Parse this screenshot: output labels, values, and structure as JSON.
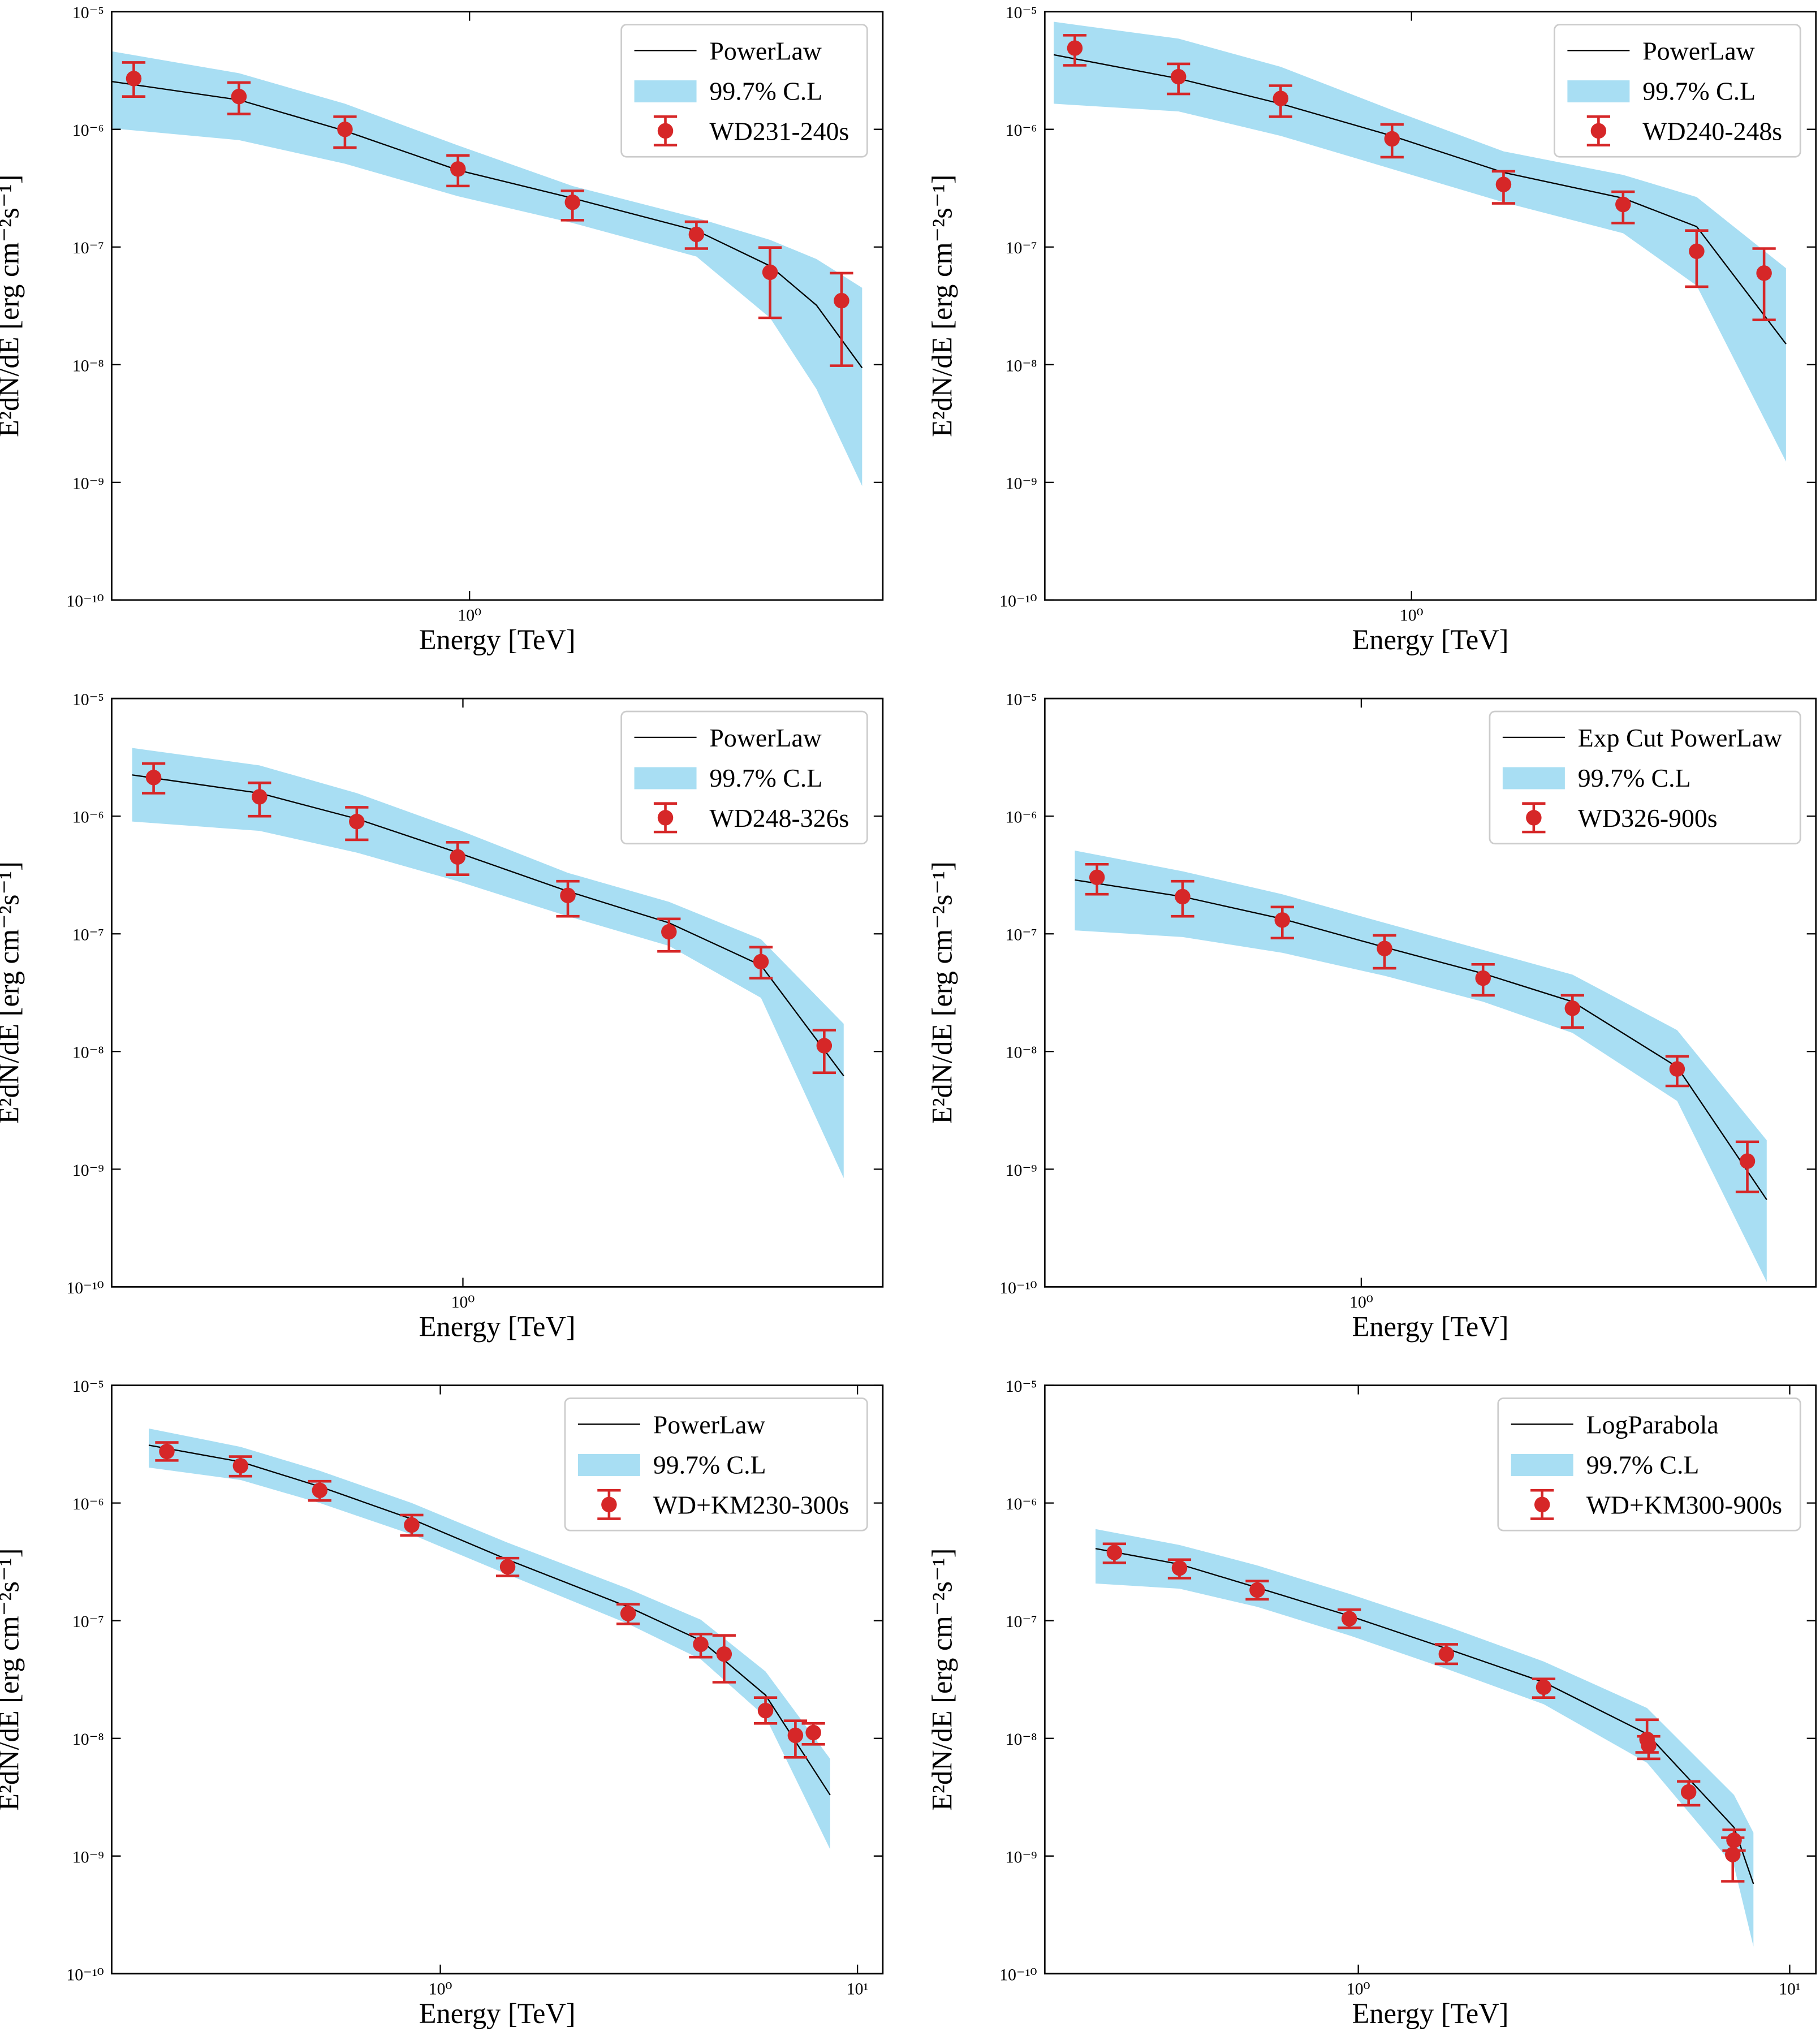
{
  "chart_data": [
    {
      "type": "spectrum",
      "xlabel": "Energy [TeV]",
      "ylabel": "E²dN/dE [erg cm⁻²s⁻¹]",
      "xscale": "log",
      "yscale": "log",
      "legend": "upper right",
      "xlim": [
        0.204,
        6.27
      ],
      "ylim": [
        1e-10,
        1e-05
      ],
      "xticks": [
        {
          "value": 1,
          "label": "10⁰"
        }
      ],
      "yticks": [
        {
          "value": 1e-10,
          "label": "10⁻¹⁰"
        },
        {
          "value": 1e-09,
          "label": "10⁻⁹"
        },
        {
          "value": 1e-08,
          "label": "10⁻⁸"
        },
        {
          "value": 1e-07,
          "label": "10⁻⁷"
        },
        {
          "value": 1e-06,
          "label": "10⁻⁶"
        },
        {
          "value": 1e-05,
          "label": "10⁻⁵"
        }
      ],
      "model": {
        "name": "PowerLaw",
        "color": "#000000",
        "x": [
          0.204,
          0.359,
          0.575,
          0.95,
          1.58,
          2.74,
          3.8,
          4.67,
          5.72
        ],
        "values": [
          2.55e-06,
          1.78e-06,
          9.7e-07,
          4.5e-07,
          2.6e-07,
          1.38e-07,
          6.9e-08,
          3.2e-08,
          9.4e-09
        ]
      },
      "band": {
        "name": "99.7% C.L",
        "color": "#a8def3",
        "x": [
          0.204,
          0.359,
          0.575,
          0.95,
          1.58,
          2.74,
          3.8,
          4.67,
          5.72
        ],
        "lower": [
          1.02e-06,
          8.1e-07,
          5.1e-07,
          2.7e-07,
          1.6e-07,
          8.3e-08,
          2.5e-08,
          6.2e-09,
          9.3e-10
        ],
        "upper": [
          4.6e-06,
          3e-06,
          1.65e-06,
          7.3e-07,
          3.3e-07,
          1.77e-07,
          1.15e-07,
          7.9e-08,
          4.5e-08
        ]
      },
      "points": {
        "name": "WD231-240s",
        "color": "#d62728",
        "x": [
          0.225,
          0.359,
          0.575,
          0.95,
          1.58,
          2.74,
          3.8,
          5.22
        ],
        "values": [
          2.7e-06,
          1.9e-06,
          1e-06,
          4.6e-07,
          2.4e-07,
          1.28e-07,
          6.1e-08,
          3.5e-08
        ],
        "lower": [
          1.9e-06,
          1.35e-06,
          7e-07,
          3.3e-07,
          1.69e-07,
          9.7e-08,
          2.5e-08,
          9.8e-09
        ],
        "upper": [
          3.7e-06,
          2.5e-06,
          1.28e-06,
          6e-07,
          3e-07,
          1.64e-07,
          9.9e-08,
          6e-08
        ]
      }
    },
    {
      "type": "spectrum",
      "xlabel": "Energy [TeV]",
      "ylabel": "E²dN/dE [erg cm⁻²s⁻¹]",
      "xscale": "log",
      "yscale": "log",
      "legend": "upper right",
      "xlim": [
        0.196,
        6.03
      ],
      "ylim": [
        1e-10,
        1e-05
      ],
      "xticks": [
        {
          "value": 1,
          "label": "10⁰"
        }
      ],
      "yticks": [
        {
          "value": 1e-10,
          "label": "10⁻¹⁰"
        },
        {
          "value": 1e-09,
          "label": "10⁻⁹"
        },
        {
          "value": 1e-08,
          "label": "10⁻⁸"
        },
        {
          "value": 1e-07,
          "label": "10⁻⁷"
        },
        {
          "value": 1e-06,
          "label": "10⁻⁶"
        },
        {
          "value": 1e-05,
          "label": "10⁻⁵"
        }
      ],
      "model": {
        "name": "PowerLaw",
        "color": "#000000",
        "x": [
          0.204,
          0.355,
          0.559,
          0.917,
          1.505,
          2.56,
          3.55,
          5.28
        ],
        "values": [
          4.3e-06,
          2.7e-06,
          1.65e-06,
          8.8e-07,
          4.3e-07,
          2.6e-07,
          1.49e-07,
          1.5e-08
        ]
      },
      "band": {
        "name": "99.7% C.L",
        "color": "#a8def3",
        "x": [
          0.204,
          0.355,
          0.559,
          0.917,
          1.505,
          2.56,
          3.55,
          5.28
        ],
        "lower": [
          1.65e-06,
          1.42e-06,
          8.8e-07,
          4.6e-07,
          2.4e-07,
          1.31e-07,
          4.7e-08,
          1.5e-09
        ],
        "upper": [
          8.2e-06,
          5.9e-06,
          3.4e-06,
          1.46e-06,
          6.5e-07,
          4.1e-07,
          2.66e-07,
          6.6e-08
        ]
      },
      "points": {
        "name": "WD240-248s",
        "color": "#d62728",
        "x": [
          0.224,
          0.355,
          0.559,
          0.917,
          1.505,
          2.56,
          3.55,
          4.79
        ],
        "values": [
          4.9e-06,
          2.8e-06,
          1.83e-06,
          8.3e-07,
          3.4e-07,
          2.3e-07,
          9.2e-08,
          6e-08
        ],
        "lower": [
          3.5e-06,
          2e-06,
          1.28e-06,
          5.8e-07,
          2.35e-07,
          1.6e-07,
          4.6e-08,
          2.4e-08
        ],
        "upper": [
          6.3e-06,
          3.6e-06,
          2.35e-06,
          1.1e-06,
          4.4e-07,
          2.95e-07,
          1.38e-07,
          9.7e-08
        ]
      }
    },
    {
      "type": "spectrum",
      "xlabel": "Energy [TeV]",
      "ylabel": "E²dN/dE [erg cm⁻²s⁻¹]",
      "xscale": "log",
      "yscale": "log",
      "legend": "upper right",
      "xlim": [
        0.21,
        6.46
      ],
      "ylim": [
        1e-10,
        1e-05
      ],
      "xticks": [
        {
          "value": 1,
          "label": "10⁰"
        }
      ],
      "yticks": [
        {
          "value": 1e-10,
          "label": "10⁻¹⁰"
        },
        {
          "value": 1e-09,
          "label": "10⁻⁹"
        },
        {
          "value": 1e-08,
          "label": "10⁻⁸"
        },
        {
          "value": 1e-07,
          "label": "10⁻⁷"
        },
        {
          "value": 1e-06,
          "label": "10⁻⁶"
        },
        {
          "value": 1e-05,
          "label": "10⁻⁵"
        }
      ],
      "model": {
        "name": "PowerLaw",
        "color": "#000000",
        "x": [
          0.23,
          0.405,
          0.624,
          0.977,
          1.594,
          2.498,
          3.76,
          5.43
        ],
        "values": [
          2.24e-06,
          1.57e-06,
          9.5e-07,
          4.9e-07,
          2.3e-07,
          1.24e-07,
          5.4e-08,
          6.2e-09
        ]
      },
      "band": {
        "name": "99.7% C.L",
        "color": "#a8def3",
        "x": [
          0.23,
          0.405,
          0.624,
          0.977,
          1.594,
          2.498,
          3.76,
          5.43
        ],
        "lower": [
          9e-07,
          7.5e-07,
          4.9e-07,
          2.8e-07,
          1.41e-07,
          7.9e-08,
          2.86e-08,
          8.4e-10
        ],
        "upper": [
          3.8e-06,
          2.7e-06,
          1.57e-06,
          7.7e-07,
          3.3e-07,
          1.87e-07,
          9e-08,
          1.72e-08
        ]
      },
      "points": {
        "name": "WD248-326s",
        "color": "#d62728",
        "x": [
          0.253,
          0.405,
          0.624,
          0.977,
          1.594,
          2.498,
          3.76,
          4.98
        ],
        "values": [
          2.13e-06,
          1.46e-06,
          9e-07,
          4.5e-07,
          2.12e-07,
          1.04e-07,
          5.8e-08,
          1.12e-08
        ],
        "lower": [
          1.57e-06,
          1e-06,
          6.3e-07,
          3.18e-07,
          1.41e-07,
          7.1e-08,
          4.2e-08,
          6.6e-09
        ],
        "upper": [
          2.8e-06,
          1.92e-06,
          1.19e-06,
          6e-07,
          2.8e-07,
          1.34e-07,
          7.7e-08,
          1.52e-08
        ]
      }
    },
    {
      "type": "spectrum",
      "xlabel": "Energy [TeV]",
      "ylabel": "E²dN/dE [erg cm⁻²s⁻¹]",
      "xscale": "log",
      "yscale": "log",
      "legend": "upper right",
      "xlim": [
        0.245,
        7.54
      ],
      "ylim": [
        1e-10,
        1e-05
      ],
      "xticks": [
        {
          "value": 1,
          "label": "10⁰"
        }
      ],
      "yticks": [
        {
          "value": 1e-10,
          "label": "10⁻¹⁰"
        },
        {
          "value": 1e-09,
          "label": "10⁻⁹"
        },
        {
          "value": 1e-08,
          "label": "10⁻⁸"
        },
        {
          "value": 1e-07,
          "label": "10⁻⁷"
        },
        {
          "value": 1e-06,
          "label": "10⁻⁶"
        },
        {
          "value": 1e-05,
          "label": "10⁻⁵"
        }
      ],
      "model": {
        "name": "Exp Cut PowerLaw",
        "color": "#000000",
        "x": [
          0.28,
          0.452,
          0.704,
          1.109,
          1.718,
          2.556,
          4.07,
          6.06
        ],
        "values": [
          2.87e-07,
          2.07e-07,
          1.34e-07,
          7.7e-08,
          4.6e-08,
          2.65e-08,
          7.4e-09,
          5.5e-10
        ]
      },
      "band": {
        "name": "99.7% C.L",
        "color": "#a8def3",
        "x": [
          0.28,
          0.452,
          0.704,
          1.109,
          1.718,
          2.556,
          4.07,
          6.06
        ],
        "lower": [
          1.07e-07,
          9.4e-08,
          6.9e-08,
          4.4e-08,
          2.65e-08,
          1.44e-08,
          3.8e-09,
          1.1e-10
        ],
        "upper": [
          5.1e-07,
          3.4e-07,
          2.17e-07,
          1.24e-07,
          7.3e-08,
          4.5e-08,
          1.52e-08,
          1.76e-09
        ]
      },
      "points": {
        "name": "WD326-900s",
        "color": "#d62728",
        "x": [
          0.309,
          0.452,
          0.704,
          1.109,
          1.718,
          2.556,
          4.07,
          5.56
        ],
        "values": [
          3.02e-07,
          2.07e-07,
          1.31e-07,
          7.5e-08,
          4.2e-08,
          2.33e-08,
          7.1e-09,
          1.17e-09
        ],
        "lower": [
          2.17e-07,
          1.41e-07,
          9.2e-08,
          5.1e-08,
          3e-08,
          1.6e-08,
          5.1e-09,
          6.4e-10
        ],
        "upper": [
          3.9e-07,
          2.8e-07,
          1.69e-07,
          9.7e-08,
          5.5e-08,
          3e-08,
          9.1e-09,
          1.71e-09
        ]
      }
    },
    {
      "type": "spectrum",
      "xlabel": "Energy [TeV]",
      "ylabel": "E²dN/dE [erg cm⁻²s⁻¹]",
      "xscale": "log",
      "yscale": "log",
      "legend": "upper right",
      "xlim": [
        0.163,
        11.5
      ],
      "ylim": [
        1e-10,
        1e-05
      ],
      "xticks": [
        {
          "value": 1,
          "label": "10⁰"
        },
        {
          "value": 10,
          "label": "10¹"
        }
      ],
      "yticks": [
        {
          "value": 1e-10,
          "label": "10⁻¹⁰"
        },
        {
          "value": 1e-09,
          "label": "10⁻⁹"
        },
        {
          "value": 1e-08,
          "label": "10⁻⁸"
        },
        {
          "value": 1e-07,
          "label": "10⁻⁷"
        },
        {
          "value": 1e-06,
          "label": "10⁻⁶"
        },
        {
          "value": 1e-05,
          "label": "10⁻⁵"
        }
      ],
      "model": {
        "name": "PowerLaw",
        "color": "#000000",
        "x": [
          0.2,
          0.332,
          0.514,
          0.854,
          1.45,
          2.82,
          4.21,
          6.02,
          8.6
        ],
        "values": [
          3.1e-06,
          2.24e-06,
          1.38e-06,
          7.3e-07,
          3.3e-07,
          1.31e-07,
          6.8e-08,
          2.33e-08,
          3.3e-09
        ]
      },
      "band": {
        "name": "99.7% C.L",
        "color": "#a8def3",
        "x": [
          0.2,
          0.332,
          0.514,
          0.854,
          1.45,
          2.82,
          4.21,
          6.02,
          8.6
        ],
        "lower": [
          2e-06,
          1.57e-06,
          1e-06,
          5.4e-07,
          2.47e-07,
          9.4e-08,
          4.7e-08,
          1.52e-08,
          1.14e-09
        ],
        "upper": [
          4.3e-06,
          3e-06,
          1.88e-06,
          1e-06,
          4.6e-07,
          1.87e-07,
          1.02e-07,
          3.7e-08,
          6.7e-09
        ]
      },
      "points": {
        "name": "WD+KM230-300s",
        "color": "#d62728",
        "x": [
          0.221,
          0.332,
          0.514,
          0.854,
          1.45,
          2.82,
          4.21,
          4.79,
          6.02,
          7.1,
          7.84
        ],
        "values": [
          2.74e-06,
          2.07e-06,
          1.28e-06,
          6.5e-07,
          2.87e-07,
          1.15e-07,
          6.3e-08,
          5.2e-08,
          1.72e-08,
          1.06e-08,
          1.12e-08
        ],
        "lower": [
          2.3e-06,
          1.69e-06,
          1.05e-06,
          5.3e-07,
          2.4e-07,
          9.4e-08,
          4.9e-08,
          3e-08,
          1.34e-08,
          6.9e-09,
          8.9e-09
        ],
        "upper": [
          3.27e-06,
          2.48e-06,
          1.53e-06,
          7.9e-07,
          3.4e-07,
          1.38e-07,
          7.7e-08,
          7.5e-08,
          2.22e-08,
          1.41e-08,
          1.34e-08
        ]
      }
    },
    {
      "type": "spectrum",
      "xlabel": "Energy [TeV]",
      "ylabel": "E²dN/dE [erg cm⁻²s⁻¹]",
      "xscale": "log",
      "yscale": "log",
      "legend": "upper right",
      "xlim": [
        0.1876,
        11.5
      ],
      "ylim": [
        1e-10,
        1e-05
      ],
      "xticks": [
        {
          "value": 1,
          "label": "10⁰"
        },
        {
          "value": 10,
          "label": "10¹"
        }
      ],
      "yticks": [
        {
          "value": 1e-10,
          "label": "10⁻¹⁰"
        },
        {
          "value": 1e-09,
          "label": "10⁻⁹"
        },
        {
          "value": 1e-08,
          "label": "10⁻⁸"
        },
        {
          "value": 1e-07,
          "label": "10⁻⁷"
        },
        {
          "value": 1e-06,
          "label": "10⁻⁶"
        },
        {
          "value": 1e-05,
          "label": "10⁻⁵"
        }
      ],
      "model": {
        "name": "LogParabola",
        "color": "#000000",
        "x": [
          0.246,
          0.385,
          0.583,
          0.953,
          1.6,
          2.69,
          4.67,
          7.43,
          8.24
        ],
        "values": [
          4.1e-07,
          3.02e-07,
          1.91e-07,
          1.1e-07,
          5.8e-08,
          3e-08,
          1.09e-08,
          1.75e-09,
          5.8e-10
        ]
      },
      "band": {
        "name": "99.7% C.L",
        "color": "#a8def3",
        "x": [
          0.246,
          0.385,
          0.583,
          0.953,
          1.6,
          2.69,
          4.67,
          7.43,
          8.24
        ],
        "lower": [
          2.07e-07,
          1.87e-07,
          1.31e-07,
          7.5e-08,
          3.9e-08,
          1.95e-08,
          6.2e-09,
          8.2e-10,
          1.7e-10
        ],
        "upper": [
          6e-07,
          4.4e-07,
          2.95e-07,
          1.69e-07,
          9e-08,
          4.5e-08,
          1.81e-08,
          3.3e-09,
          1.58e-09
        ]
      },
      "points": {
        "name": "WD+KM300-900s",
        "color": "#d62728",
        "x": [
          0.272,
          0.385,
          0.583,
          0.953,
          1.6,
          2.69,
          4.67,
          4.71,
          5.83,
          7.43,
          7.38
        ],
        "values": [
          3.8e-07,
          2.8e-07,
          1.82e-07,
          1.04e-07,
          5.2e-08,
          2.72e-08,
          9.8e-09,
          8.7e-09,
          3.5e-09,
          1.36e-09,
          1.03e-09
        ],
        "lower": [
          3.1e-07,
          2.3e-07,
          1.52e-07,
          8.7e-08,
          4.3e-08,
          2.22e-08,
          7.6e-09,
          6.7e-09,
          2.7e-09,
          1.11e-09,
          6.1e-10
        ],
        "upper": [
          4.5e-07,
          3.3e-07,
          2.17e-07,
          1.24e-07,
          6.3e-08,
          3.2e-08,
          1.44e-08,
          1.04e-08,
          4.3e-09,
          1.67e-09,
          1.43e-09
        ]
      }
    }
  ]
}
